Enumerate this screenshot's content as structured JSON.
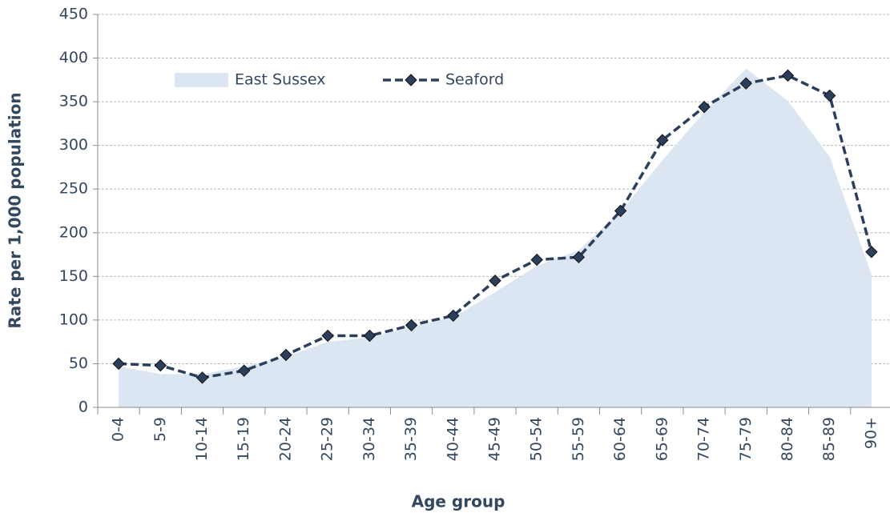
{
  "chart_data": {
    "type": "line",
    "x_label": "Age group",
    "y_label": "Rate per 1,000 population",
    "categories": [
      "0-4",
      "5-9",
      "10-14",
      "15-19",
      "20-24",
      "25-29",
      "30-34",
      "35-39",
      "40-44",
      "45-49",
      "50-54",
      "55-59",
      "60-64",
      "65-69",
      "70-74",
      "75-79",
      "80-84",
      "85-89",
      "90+"
    ],
    "series": [
      {
        "name": "East Sussex",
        "kind": "area",
        "color": "#dce6f2",
        "values": [
          47,
          38,
          38,
          47,
          58,
          75,
          80,
          92,
          103,
          132,
          162,
          180,
          224,
          283,
          338,
          388,
          351,
          287,
          152
        ]
      },
      {
        "name": "Seaford",
        "kind": "line",
        "color": "#2b3f5c",
        "values": [
          50,
          48,
          34,
          42,
          60,
          82,
          82,
          94,
          105,
          145,
          169,
          172,
          225,
          306,
          344,
          371,
          380,
          357,
          178
        ]
      }
    ],
    "ylim": [
      0,
      450
    ],
    "yticks": [
      0,
      50,
      100,
      150,
      200,
      250,
      300,
      350,
      400,
      450
    ],
    "grid": true
  }
}
